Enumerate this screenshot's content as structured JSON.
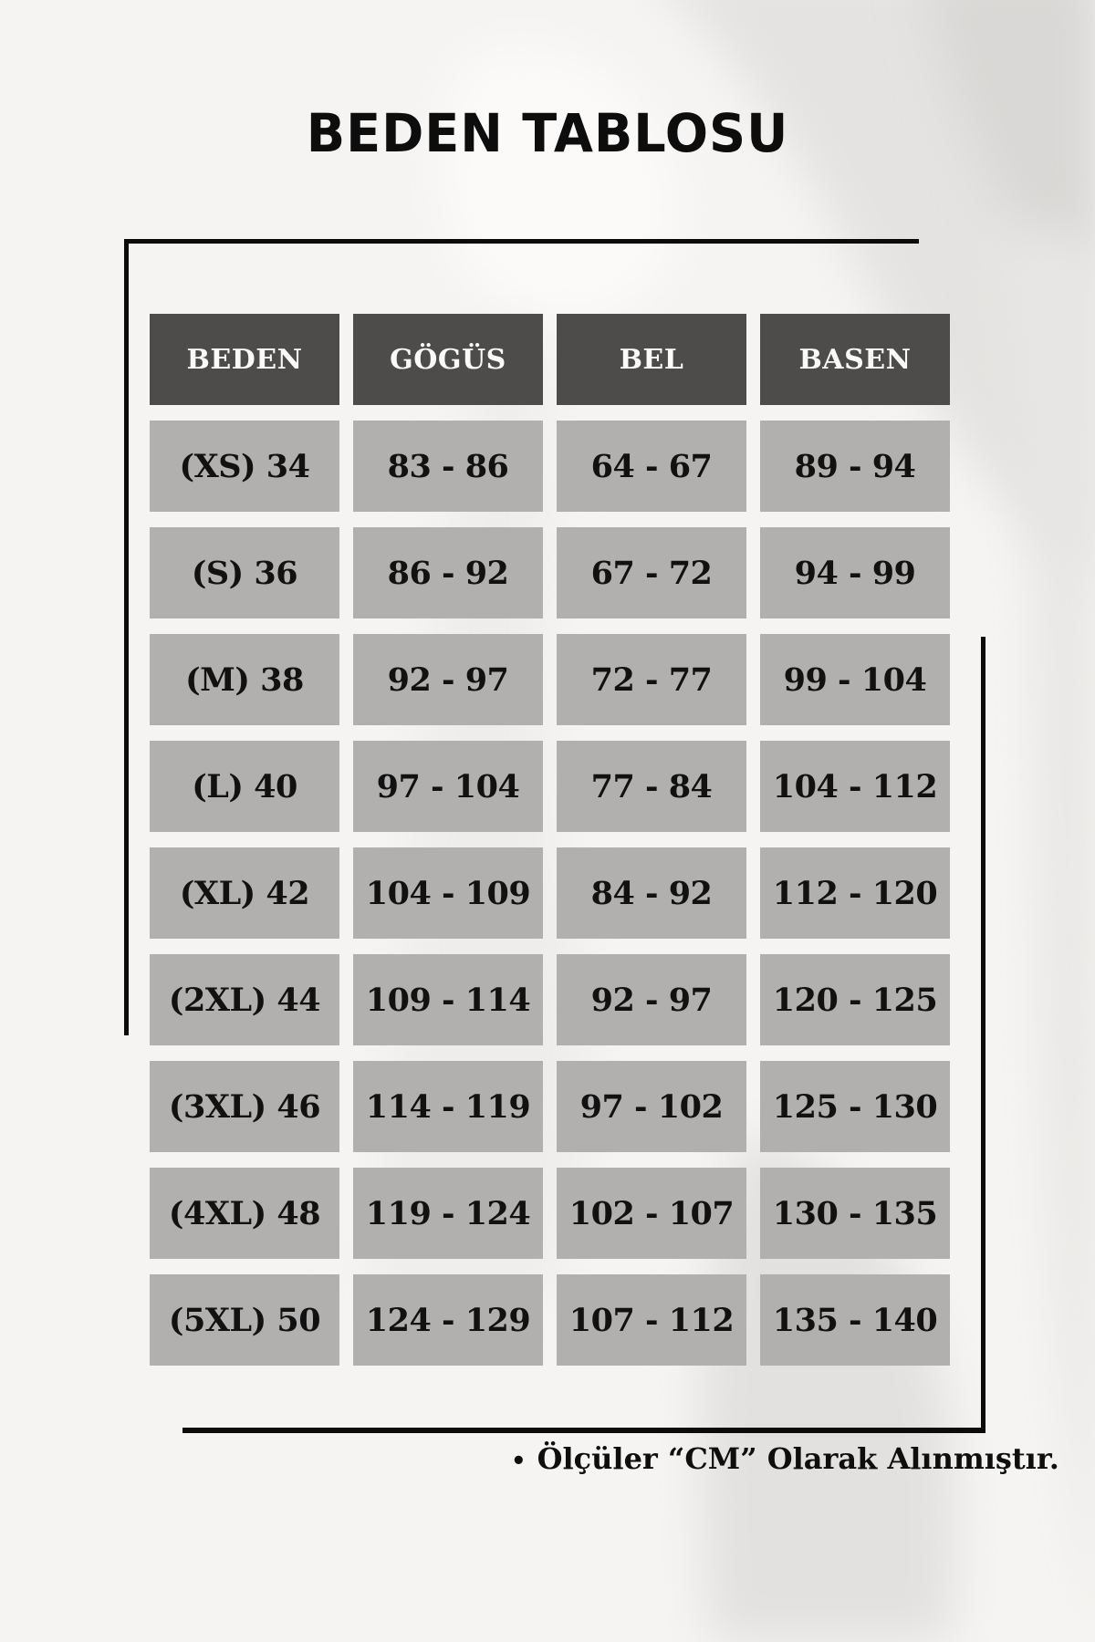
{
  "title": "BEDEN TABLOSU",
  "table": {
    "headers": [
      "BEDEN",
      "GÖGÜS",
      "BEL",
      "BASEN"
    ],
    "rows": [
      [
        "(XS) 34",
        "83 - 86",
        "64 - 67",
        "89 - 94"
      ],
      [
        "(S) 36",
        "86 - 92",
        "67 - 72",
        "94 - 99"
      ],
      [
        "(M) 38",
        "92 - 97",
        "72 - 77",
        "99 - 104"
      ],
      [
        "(L) 40",
        "97 - 104",
        "77 - 84",
        "104 - 112"
      ],
      [
        "(XL) 42",
        "104 - 109",
        "84 - 92",
        "112 - 120"
      ],
      [
        "(2XL) 44",
        "109 - 114",
        "92 - 97",
        "120 - 125"
      ],
      [
        "(3XL) 46",
        "114 - 119",
        "97 - 102",
        "125 - 130"
      ],
      [
        "(4XL) 48",
        "119 - 124",
        "102 - 107",
        "130 - 135"
      ],
      [
        "(5XL) 50",
        "124 - 129",
        "107 - 112",
        "135 - 140"
      ]
    ]
  },
  "footer": {
    "bullet": "•",
    "note": "Ölçüler “CM” Olarak Alınmıştır."
  },
  "colors": {
    "background": "#f5f4f2",
    "header_bg": "#4d4c4a",
    "header_text": "#fafafa",
    "cell_bg": "#b1b0ae",
    "cell_text": "#111111",
    "line": "#0b0b0b",
    "title_text": "#0d0d0d"
  }
}
